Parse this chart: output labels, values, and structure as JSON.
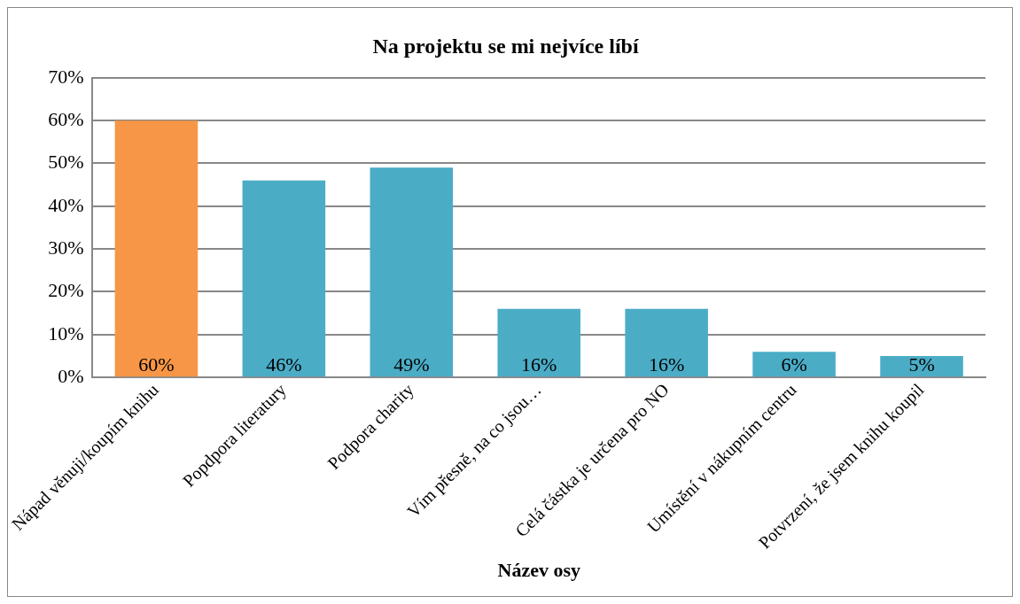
{
  "chart_data": {
    "type": "bar",
    "title": "Na projektu se mi nejvíce líbí",
    "xlabel": "Název osy",
    "categories": [
      "Nápad věnuji/koupím knihu",
      "Popdpora literatury",
      "Podpora charity",
      "Vím přesně, na co jsou…",
      "Celá částka je určena pro NO",
      "Umístění v nákupním centru",
      "Potvrzení, že jsem knihu koupil"
    ],
    "values": [
      60,
      46,
      49,
      16,
      16,
      6,
      5
    ],
    "colors": [
      "#f79646",
      "#4bacc6",
      "#4bacc6",
      "#4bacc6",
      "#4bacc6",
      "#4bacc6",
      "#4bacc6"
    ],
    "value_labels": [
      "60%",
      "46%",
      "49%",
      "16%",
      "16%",
      "6%",
      "5%"
    ],
    "ylim": [
      0,
      70
    ],
    "yticks": [
      {
        "value": 0,
        "label": "0%"
      },
      {
        "value": 10,
        "label": "10%"
      },
      {
        "value": 20,
        "label": "20%"
      },
      {
        "value": 30,
        "label": "30%"
      },
      {
        "value": 40,
        "label": "40%"
      },
      {
        "value": 50,
        "label": "50%"
      },
      {
        "value": 60,
        "label": "60%"
      },
      {
        "value": 70,
        "label": "70%"
      }
    ],
    "grid": "y",
    "legend": false
  }
}
